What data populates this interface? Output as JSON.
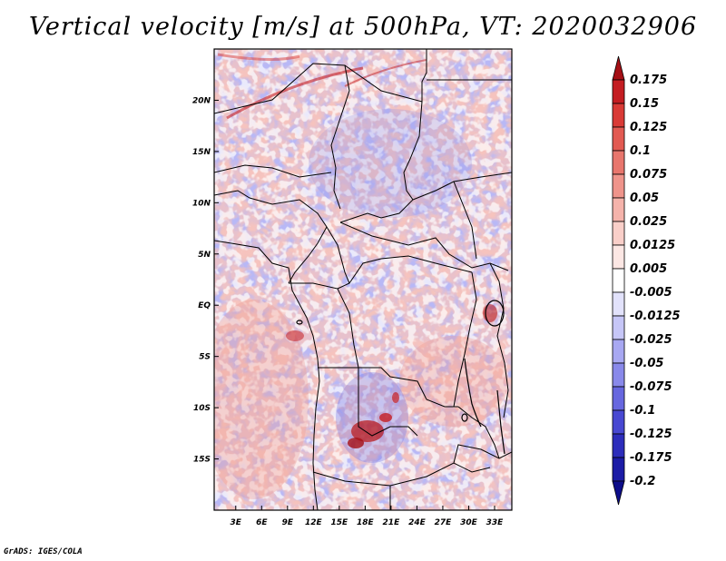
{
  "title": "Vertical velocity [m/s] at 500hPa, VT: 2020032906",
  "footer": "GrADS: IGES/COLA",
  "map": {
    "lat_ticks": [
      "20N",
      "15N",
      "10N",
      "5N",
      "EQ",
      "5S",
      "10S",
      "15S"
    ],
    "lon_ticks": [
      "3E",
      "6E",
      "9E",
      "12E",
      "15E",
      "18E",
      "21E",
      "24E",
      "27E",
      "30E",
      "33E"
    ],
    "lon_range": [
      0.5,
      35
    ],
    "lat_range": [
      -20,
      25
    ]
  },
  "colorbar": {
    "levels": [
      "0.175",
      "0.15",
      "0.125",
      "0.1",
      "0.075",
      "0.05",
      "0.025",
      "0.0125",
      "0.005",
      "-0.005",
      "-0.0125",
      "-0.025",
      "-0.05",
      "-0.075",
      "-0.1",
      "-0.125",
      "-0.175",
      "-0.2"
    ],
    "colors": [
      "#a50f15",
      "#c41d22",
      "#d93a36",
      "#e25a52",
      "#e8766d",
      "#ef948b",
      "#f5b3ab",
      "#f9cfc9",
      "#fce7e4",
      "#ffffff",
      "#e2e2fb",
      "#c6c6f7",
      "#a8a8f2",
      "#8989ea",
      "#6767df",
      "#4848d2",
      "#2d2dbb",
      "#1c1ca6",
      "#0d0d8a"
    ]
  }
}
